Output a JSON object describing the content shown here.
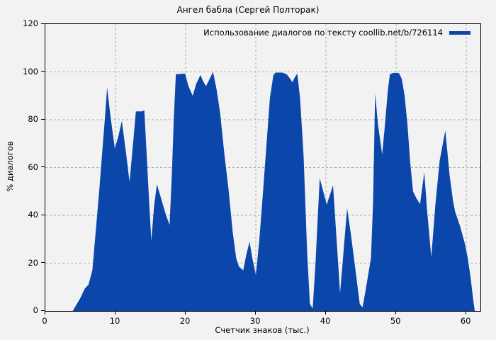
{
  "title": "Ангел бабла (Сергей Полторак)",
  "legend": {
    "label": "Использование диалогов по тексту coollib.net/b/726114"
  },
  "colors": {
    "fill": "#0b46ab",
    "background": "#f2f2f2",
    "grid": "#ababab",
    "axis": "#000000"
  },
  "chart_data": {
    "type": "area",
    "title": "Ангел бабла (Сергей Полторак)",
    "xlabel": "Счетчик знаков (тыс.)",
    "ylabel": "% диалогов",
    "xlim": [
      0,
      62
    ],
    "ylim": [
      0,
      120
    ],
    "xticks": [
      0,
      10,
      20,
      30,
      40,
      50,
      60
    ],
    "yticks": [
      0,
      20,
      40,
      60,
      80,
      100,
      120
    ],
    "grid": true,
    "legend_position": "top-right",
    "series": [
      {
        "name": "Использование диалогов по тексту coollib.net/b/726114",
        "points": [
          [
            0,
            0
          ],
          [
            3.9,
            0
          ],
          [
            4.2,
            1.5
          ],
          [
            4.6,
            3.5
          ],
          [
            5.0,
            5.5
          ],
          [
            5.4,
            8
          ],
          [
            5.65,
            9.5
          ],
          [
            6.15,
            11
          ],
          [
            6.7,
            17
          ],
          [
            7.2,
            34
          ],
          [
            7.7,
            51
          ],
          [
            8.2,
            70
          ],
          [
            8.5,
            81
          ],
          [
            8.8,
            93.5
          ],
          [
            9.3,
            81
          ],
          [
            9.9,
            68
          ],
          [
            10.4,
            73
          ],
          [
            10.9,
            79.5
          ],
          [
            11.5,
            66
          ],
          [
            12.0,
            54
          ],
          [
            12.5,
            70
          ],
          [
            12.9,
            83.5
          ],
          [
            13.8,
            83.5
          ],
          [
            14.1,
            84
          ],
          [
            14.5,
            62
          ],
          [
            14.8,
            45
          ],
          [
            15.1,
            29.5
          ],
          [
            15.5,
            44
          ],
          [
            15.9,
            53
          ],
          [
            16.6,
            46
          ],
          [
            17.2,
            40
          ],
          [
            17.7,
            36
          ],
          [
            18.0,
            55
          ],
          [
            18.3,
            80
          ],
          [
            18.6,
            99
          ],
          [
            19.9,
            99.3
          ],
          [
            20.4,
            94
          ],
          [
            21.0,
            90
          ],
          [
            21.5,
            95
          ],
          [
            22.1,
            98.7
          ],
          [
            22.5,
            96
          ],
          [
            22.9,
            94
          ],
          [
            23.4,
            97
          ],
          [
            23.9,
            100
          ],
          [
            24.4,
            92.7
          ],
          [
            24.9,
            83
          ],
          [
            25.5,
            66
          ],
          [
            26.1,
            51
          ],
          [
            26.7,
            33
          ],
          [
            27.2,
            22
          ],
          [
            27.6,
            18.5
          ],
          [
            28.2,
            17
          ],
          [
            28.6,
            23
          ],
          [
            29.1,
            29
          ],
          [
            29.5,
            22
          ],
          [
            30.0,
            15
          ],
          [
            30.5,
            30
          ],
          [
            31.0,
            49
          ],
          [
            31.5,
            69
          ],
          [
            32.0,
            89
          ],
          [
            32.5,
            98.7
          ],
          [
            32.8,
            99.7
          ],
          [
            33.8,
            99.7
          ],
          [
            34.4,
            99
          ],
          [
            34.8,
            97.5
          ],
          [
            35.2,
            95.7
          ],
          [
            35.6,
            98
          ],
          [
            35.9,
            99.3
          ],
          [
            36.3,
            89
          ],
          [
            36.8,
            65
          ],
          [
            37.3,
            25
          ],
          [
            37.7,
            3
          ],
          [
            38.1,
            1
          ],
          [
            38.5,
            20
          ],
          [
            38.8,
            38
          ],
          [
            39.1,
            55.5
          ],
          [
            39.6,
            50
          ],
          [
            40.1,
            44.5
          ],
          [
            40.6,
            49
          ],
          [
            41.0,
            52.5
          ],
          [
            41.5,
            30
          ],
          [
            42.0,
            7.5
          ],
          [
            42.5,
            25
          ],
          [
            43.0,
            43
          ],
          [
            43.5,
            33
          ],
          [
            44.2,
            17
          ],
          [
            44.8,
            3
          ],
          [
            45.2,
            1.5
          ],
          [
            45.6,
            8
          ],
          [
            46.0,
            15
          ],
          [
            46.4,
            22
          ],
          [
            46.7,
            45
          ],
          [
            47.0,
            91
          ],
          [
            47.4,
            78
          ],
          [
            48.0,
            65.5
          ],
          [
            48.4,
            78
          ],
          [
            48.8,
            92
          ],
          [
            49.1,
            99
          ],
          [
            49.6,
            99.6
          ],
          [
            50.4,
            99.5
          ],
          [
            50.8,
            97
          ],
          [
            51.2,
            90
          ],
          [
            51.6,
            78
          ],
          [
            52.0,
            62
          ],
          [
            52.4,
            50
          ],
          [
            52.9,
            47
          ],
          [
            53.4,
            44.7
          ],
          [
            54.0,
            58
          ],
          [
            54.4,
            42
          ],
          [
            55.0,
            22.5
          ],
          [
            55.6,
            45
          ],
          [
            56.2,
            63
          ],
          [
            57.0,
            75.5
          ],
          [
            57.6,
            57
          ],
          [
            58.1,
            46
          ],
          [
            58.4,
            41.5
          ],
          [
            59.1,
            35.5
          ],
          [
            59.8,
            28
          ],
          [
            60.2,
            22
          ],
          [
            60.6,
            14
          ],
          [
            61.0,
            4
          ],
          [
            61.2,
            0
          ]
        ]
      }
    ]
  }
}
